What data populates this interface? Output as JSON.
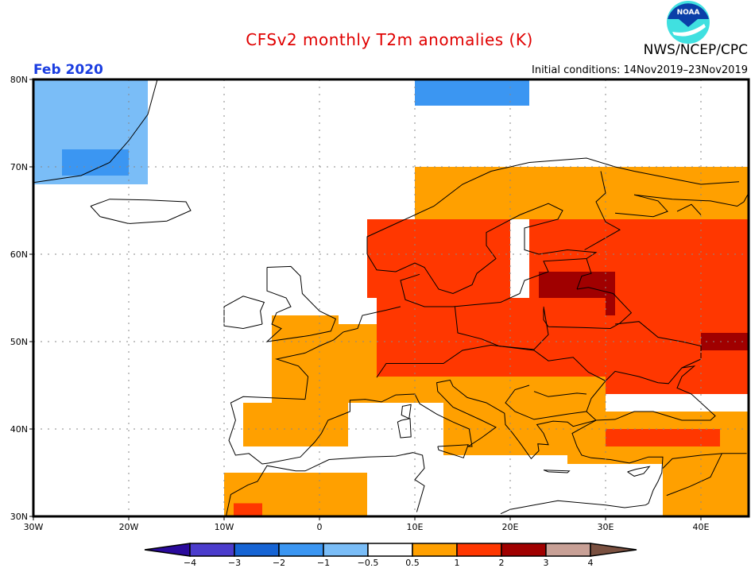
{
  "header": {
    "title": "CFSv2 monthly T2m anomalies (K)",
    "organization": "NWS/NCEP/CPC",
    "logo_text": "NOAA",
    "target_month": "Feb 2020",
    "initial_conditions": "Initial conditions: 14Nov2019–23Nov2019"
  },
  "colors": {
    "title": "#e00000",
    "month": "#1a3de0",
    "logo_dark": "#0a3fa8",
    "logo_light": "#40e0e0"
  },
  "chart_data": {
    "type": "heatmap",
    "title": "CFSv2 monthly T2m anomalies (K)",
    "subtitle": "Feb 2020",
    "units": "K",
    "lon_range": [
      -30,
      45
    ],
    "lat_range": [
      30,
      80
    ],
    "x_ticks": [
      "30W",
      "20W",
      "10W",
      "0",
      "10E",
      "20E",
      "30E",
      "40E"
    ],
    "x_tick_values": [
      -30,
      -20,
      -10,
      0,
      10,
      20,
      30,
      40
    ],
    "y_ticks": [
      "30N",
      "40N",
      "50N",
      "60N",
      "70N",
      "80N"
    ],
    "y_tick_values": [
      30,
      40,
      50,
      60,
      70,
      80
    ],
    "grid": "dotted every 10 degrees",
    "colorbar": {
      "labels": [
        "−4",
        "−3",
        "−2",
        "−1",
        "−0.5",
        "0.5",
        "1",
        "2",
        "3",
        "4"
      ],
      "bins": [
        {
          "range": "< -4",
          "color": "#2a0a9c"
        },
        {
          "range": "-4 to -3",
          "color": "#4b3ccc"
        },
        {
          "range": "-3 to -2",
          "color": "#1664d4"
        },
        {
          "range": "-2 to -1",
          "color": "#3b96f2"
        },
        {
          "range": "-1 to -0.5",
          "color": "#7abdf7"
        },
        {
          "range": "-0.5 to 0.5",
          "color": "#ffffff"
        },
        {
          "range": "0.5 to 1",
          "color": "#ffa000"
        },
        {
          "range": "1 to 2",
          "color": "#ff3700"
        },
        {
          "range": "2 to 3",
          "color": "#a00000"
        },
        {
          "range": "3 to 4",
          "color": "#c8a096"
        },
        {
          "range": "> 4",
          "color": "#7a5040"
        }
      ],
      "placement": "bottom"
    },
    "regions": [
      {
        "area": "East Greenland / Denmark Strait",
        "lon": [
          -30,
          -18
        ],
        "lat": [
          68,
          80
        ],
        "anomaly_bin": "-1 to -0.5",
        "note": "patches of -2 to -1"
      },
      {
        "area": "Svalbard",
        "lon": [
          10,
          22
        ],
        "lat": [
          77,
          80
        ],
        "anomaly_bin": "-2 to -1"
      },
      {
        "area": "Northern Scandinavia / Kola",
        "lon": [
          10,
          45
        ],
        "lat": [
          64,
          70
        ],
        "anomaly_bin": "0.5 to 1"
      },
      {
        "area": "Southern Scandinavia",
        "lon": [
          5,
          20
        ],
        "lat": [
          55,
          64
        ],
        "anomaly_bin": "1 to 2"
      },
      {
        "area": "Baltics / Russia / Belarus / Ukraine",
        "lon": [
          22,
          45
        ],
        "lat": [
          44,
          64
        ],
        "anomaly_bin": "1 to 2"
      },
      {
        "area": "Baltics / Belarus core",
        "lon": [
          23,
          31
        ],
        "lat": [
          53,
          58
        ],
        "anomaly_bin": "2 to 3"
      },
      {
        "area": "SW Russia",
        "lon": [
          40,
          45
        ],
        "lat": [
          49,
          51
        ],
        "anomaly_bin": "2 to 3"
      },
      {
        "area": "Germany / Poland / Central Europe",
        "lon": [
          6,
          30
        ],
        "lat": [
          46,
          55
        ],
        "anomaly_bin": "1 to 2"
      },
      {
        "area": "France / Benelux / Alps",
        "lon": [
          -5,
          14
        ],
        "lat": [
          43,
          52
        ],
        "anomaly_bin": "0.5 to 1"
      },
      {
        "area": "Southern England",
        "lon": [
          -5,
          2
        ],
        "lat": [
          50,
          53
        ],
        "anomaly_bin": "0.5 to 1"
      },
      {
        "area": "Iberia interior",
        "lon": [
          -8,
          3
        ],
        "lat": [
          38,
          43
        ],
        "anomaly_bin": "0.5 to 1"
      },
      {
        "area": "Balkans / Greece",
        "lon": [
          13,
          30
        ],
        "lat": [
          37,
          46
        ],
        "anomaly_bin": "0.5 to 1"
      },
      {
        "area": "Turkey",
        "lon": [
          26,
          45
        ],
        "lat": [
          36,
          42
        ],
        "anomaly_bin": "0.5 to 1",
        "note": "1 to 2 in central-east"
      },
      {
        "area": "Middle East",
        "lon": [
          36,
          45
        ],
        "lat": [
          30,
          37
        ],
        "anomaly_bin": "0.5 to 1"
      },
      {
        "area": "Morocco / Algeria",
        "lon": [
          -10,
          5
        ],
        "lat": [
          30,
          35
        ],
        "anomaly_bin": "0.5 to 1",
        "note": "1 to 2 patch near 8W 30N"
      },
      {
        "area": "Mediterranean / North Africa / Atlantic",
        "lon": [
          -30,
          36
        ],
        "lat": [
          30,
          45
        ],
        "anomaly_bin": "-0.5 to 0.5"
      }
    ]
  }
}
